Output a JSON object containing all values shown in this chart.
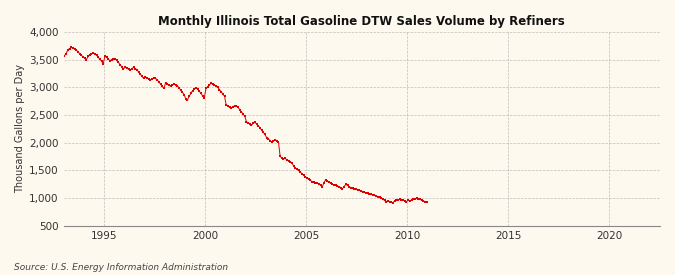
{
  "title": "Monthly Illinois Total Gasoline DTW Sales Volume by Refiners",
  "ylabel": "Thousand Gallons per Day",
  "source": "Source: U.S. Energy Information Administration",
  "line_color": "#dd0000",
  "background_color": "#fef9ee",
  "plot_background_color": "#fef9ee",
  "grid_color": "#999999",
  "ylim": [
    500,
    4000
  ],
  "yticks": [
    500,
    1000,
    1500,
    2000,
    2500,
    3000,
    3500,
    4000
  ],
  "xlim_start": 1993.0,
  "xlim_end": 2022.5,
  "xticks": [
    1995,
    2000,
    2005,
    2010,
    2015,
    2020
  ],
  "data": {
    "1993-01": 3570,
    "1993-02": 3610,
    "1993-03": 3680,
    "1993-04": 3700,
    "1993-05": 3720,
    "1993-06": 3710,
    "1993-07": 3700,
    "1993-08": 3680,
    "1993-09": 3640,
    "1993-10": 3610,
    "1993-11": 3580,
    "1993-12": 3550,
    "1994-01": 3530,
    "1994-02": 3500,
    "1994-03": 3560,
    "1994-04": 3590,
    "1994-05": 3610,
    "1994-06": 3620,
    "1994-07": 3600,
    "1994-08": 3580,
    "1994-09": 3540,
    "1994-10": 3510,
    "1994-11": 3470,
    "1994-12": 3430,
    "1995-01": 3560,
    "1995-02": 3540,
    "1995-03": 3510,
    "1995-04": 3480,
    "1995-05": 3500,
    "1995-06": 3520,
    "1995-07": 3510,
    "1995-08": 3490,
    "1995-09": 3450,
    "1995-10": 3410,
    "1995-11": 3370,
    "1995-12": 3330,
    "1996-01": 3370,
    "1996-02": 3350,
    "1996-03": 3330,
    "1996-04": 3310,
    "1996-05": 3340,
    "1996-06": 3360,
    "1996-07": 3340,
    "1996-08": 3320,
    "1996-09": 3280,
    "1996-10": 3240,
    "1996-11": 3200,
    "1996-12": 3160,
    "1997-01": 3190,
    "1997-02": 3170,
    "1997-03": 3150,
    "1997-04": 3130,
    "1997-05": 3150,
    "1997-06": 3170,
    "1997-07": 3160,
    "1997-08": 3140,
    "1997-09": 3100,
    "1997-10": 3060,
    "1997-11": 3020,
    "1997-12": 2980,
    "1998-01": 3080,
    "1998-02": 3060,
    "1998-03": 3040,
    "1998-04": 3020,
    "1998-05": 3040,
    "1998-06": 3060,
    "1998-07": 3050,
    "1998-08": 3030,
    "1998-09": 2990,
    "1998-10": 2950,
    "1998-11": 2910,
    "1998-12": 2870,
    "1999-01": 2790,
    "1999-02": 2770,
    "1999-03": 2840,
    "1999-04": 2890,
    "1999-05": 2940,
    "1999-06": 2970,
    "1999-07": 2990,
    "1999-08": 2970,
    "1999-09": 2930,
    "1999-10": 2890,
    "1999-11": 2850,
    "1999-12": 2810,
    "2000-01": 2990,
    "2000-02": 3010,
    "2000-03": 3050,
    "2000-04": 3070,
    "2000-05": 3060,
    "2000-06": 3040,
    "2000-07": 3020,
    "2000-08": 3000,
    "2000-09": 2960,
    "2000-10": 2920,
    "2000-11": 2880,
    "2000-12": 2840,
    "2001-01": 2680,
    "2001-02": 2660,
    "2001-03": 2640,
    "2001-04": 2620,
    "2001-05": 2650,
    "2001-06": 2670,
    "2001-07": 2660,
    "2001-08": 2640,
    "2001-09": 2600,
    "2001-10": 2560,
    "2001-11": 2520,
    "2001-12": 2480,
    "2002-01": 2380,
    "2002-02": 2360,
    "2002-03": 2340,
    "2002-04": 2320,
    "2002-05": 2350,
    "2002-06": 2370,
    "2002-07": 2340,
    "2002-08": 2310,
    "2002-09": 2270,
    "2002-10": 2230,
    "2002-11": 2190,
    "2002-12": 2150,
    "2003-01": 2090,
    "2003-02": 2070,
    "2003-03": 2040,
    "2003-04": 2010,
    "2003-05": 2030,
    "2003-06": 2050,
    "2003-07": 2040,
    "2003-08": 2020,
    "2003-09": 1760,
    "2003-10": 1720,
    "2003-11": 1710,
    "2003-12": 1720,
    "2004-01": 1690,
    "2004-02": 1670,
    "2004-03": 1660,
    "2004-04": 1640,
    "2004-05": 1580,
    "2004-06": 1540,
    "2004-07": 1520,
    "2004-08": 1500,
    "2004-09": 1470,
    "2004-10": 1440,
    "2004-11": 1410,
    "2004-12": 1380,
    "2005-01": 1360,
    "2005-02": 1340,
    "2005-03": 1320,
    "2005-04": 1300,
    "2005-05": 1290,
    "2005-06": 1280,
    "2005-07": 1270,
    "2005-08": 1260,
    "2005-09": 1230,
    "2005-10": 1200,
    "2005-11": 1280,
    "2005-12": 1330,
    "2006-01": 1310,
    "2006-02": 1290,
    "2006-03": 1270,
    "2006-04": 1250,
    "2006-05": 1240,
    "2006-06": 1230,
    "2006-07": 1220,
    "2006-08": 1210,
    "2006-09": 1190,
    "2006-10": 1170,
    "2006-11": 1210,
    "2006-12": 1250,
    "2007-01": 1230,
    "2007-02": 1210,
    "2007-03": 1190,
    "2007-04": 1180,
    "2007-05": 1170,
    "2007-06": 1160,
    "2007-07": 1150,
    "2007-08": 1140,
    "2007-09": 1130,
    "2007-10": 1120,
    "2007-11": 1110,
    "2007-12": 1100,
    "2008-01": 1090,
    "2008-02": 1080,
    "2008-03": 1070,
    "2008-04": 1060,
    "2008-05": 1050,
    "2008-06": 1040,
    "2008-07": 1030,
    "2008-08": 1020,
    "2008-09": 1000,
    "2008-10": 980,
    "2008-11": 960,
    "2008-12": 940,
    "2009-01": 950,
    "2009-02": 940,
    "2009-03": 930,
    "2009-04": 920,
    "2009-05": 950,
    "2009-06": 960,
    "2009-07": 970,
    "2009-08": 980,
    "2009-09": 970,
    "2009-10": 960,
    "2009-11": 950,
    "2009-12": 940,
    "2010-01": 960,
    "2010-02": 950,
    "2010-03": 970,
    "2010-04": 980,
    "2010-05": 990,
    "2010-06": 1000,
    "2010-07": 990,
    "2010-08": 980,
    "2010-09": 960,
    "2010-10": 950,
    "2010-11": 940,
    "2010-12": 930
  }
}
